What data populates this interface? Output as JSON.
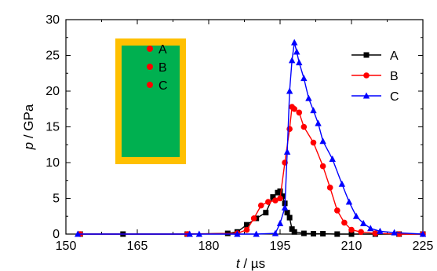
{
  "chart_data": {
    "type": "line",
    "xlabel": {
      "var": "t",
      "unit": " / µs"
    },
    "ylabel": {
      "var": "p",
      "unit": " / GPa"
    },
    "xlim": [
      150,
      225
    ],
    "ylim": [
      0,
      30
    ],
    "xticks": [
      150,
      165,
      180,
      195,
      210,
      225
    ],
    "yticks": [
      0,
      5,
      10,
      15,
      20,
      25,
      30
    ],
    "grid": false,
    "legend_position": "top-right",
    "series": [
      {
        "name": "A",
        "color": "#000000",
        "marker": "square",
        "x": [
          153,
          162,
          175.5,
          184,
          186,
          188,
          190,
          192,
          193.5,
          194.5,
          195,
          195.5,
          196,
          196.5,
          197,
          197.5,
          198,
          200,
          202,
          204,
          207,
          210,
          215,
          220,
          225
        ],
        "y": [
          0,
          0,
          0,
          0.1,
          0.3,
          1.3,
          2.2,
          3.0,
          5.2,
          5.8,
          6.0,
          5.3,
          4.3,
          3.0,
          2.3,
          0.7,
          0.3,
          0.1,
          0.05,
          0.05,
          0,
          0,
          0,
          0,
          0
        ]
      },
      {
        "name": "B",
        "color": "#ff0000",
        "marker": "circle",
        "x": [
          153,
          175.5,
          186,
          188,
          189.5,
          191,
          192.5,
          194,
          195,
          196,
          197,
          197.5,
          198,
          199,
          200,
          202,
          204,
          205.5,
          207,
          208.5,
          210,
          212,
          215,
          220,
          225
        ],
        "y": [
          0,
          0,
          0.1,
          0.6,
          2.2,
          4.0,
          4.5,
          4.7,
          5.0,
          10.0,
          14.7,
          17.8,
          17.5,
          17.0,
          15.0,
          12.8,
          9.5,
          6.5,
          3.3,
          1.6,
          0.6,
          0.3,
          0.1,
          0,
          0
        ]
      },
      {
        "name": "C",
        "color": "#0000ff",
        "marker": "triangle",
        "x": [
          152.5,
          176,
          178,
          186,
          190,
          194,
          195,
          196,
          196.5,
          197,
          197.5,
          198,
          198.5,
          199,
          200,
          201,
          202,
          203,
          204,
          206,
          208,
          209.5,
          211,
          212.5,
          214,
          216,
          219,
          225
        ],
        "y": [
          0,
          0,
          0,
          0,
          0,
          0.1,
          1.5,
          3.7,
          11.5,
          20.0,
          24.3,
          26.8,
          25.5,
          24.0,
          21.8,
          19.0,
          17.3,
          15.5,
          13.0,
          10.5,
          7.0,
          4.5,
          2.5,
          1.5,
          0.8,
          0.4,
          0.2,
          0
        ]
      }
    ],
    "inset": {
      "outer_color": "#ffc000",
      "inner_color": "#00b050",
      "points": [
        {
          "label": "A",
          "color": "#ff0000"
        },
        {
          "label": "B",
          "color": "#ff0000"
        },
        {
          "label": "C",
          "color": "#ff0000"
        }
      ]
    }
  }
}
